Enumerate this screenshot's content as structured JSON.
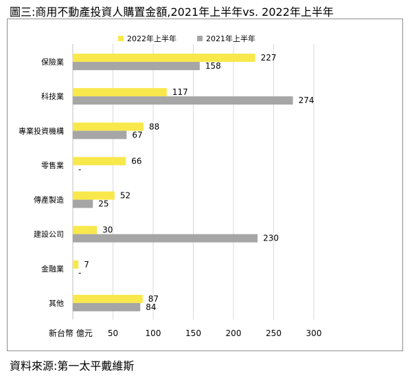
{
  "title": "圖三:商用不動產投資人購置金額,2021年上半年vs. 2022年上半年",
  "source": "資料來源:第一太平戴維斯",
  "colors": {
    "s2022": "#F8E84B",
    "s2021": "#A6A6A6",
    "grid": "#D9D9D9"
  },
  "chart_data": {
    "type": "bar",
    "orientation": "horizontal",
    "categories": [
      "保險業",
      "科技業",
      "專業投資機構",
      "零售業",
      "傳產製造",
      "建設公司",
      "金融業",
      "其他"
    ],
    "series": [
      {
        "name": "2022年上半年",
        "values": [
          227,
          117,
          88,
          66,
          52,
          30,
          7,
          87
        ],
        "labels": [
          "227",
          "117",
          "88",
          "66",
          "52",
          "30",
          "7",
          "87"
        ]
      },
      {
        "name": "2021年上半年",
        "values": [
          158,
          274,
          67,
          0,
          25,
          230,
          0,
          84
        ],
        "labels": [
          "158",
          "274",
          "67",
          "-",
          "25",
          "230",
          "-",
          "84"
        ]
      }
    ],
    "xlim": [
      0,
      300
    ],
    "xticks": [
      50,
      100,
      150,
      200,
      250,
      300
    ],
    "xlabel": "新台幣 億元",
    "grid": true,
    "legend_position": "top"
  }
}
